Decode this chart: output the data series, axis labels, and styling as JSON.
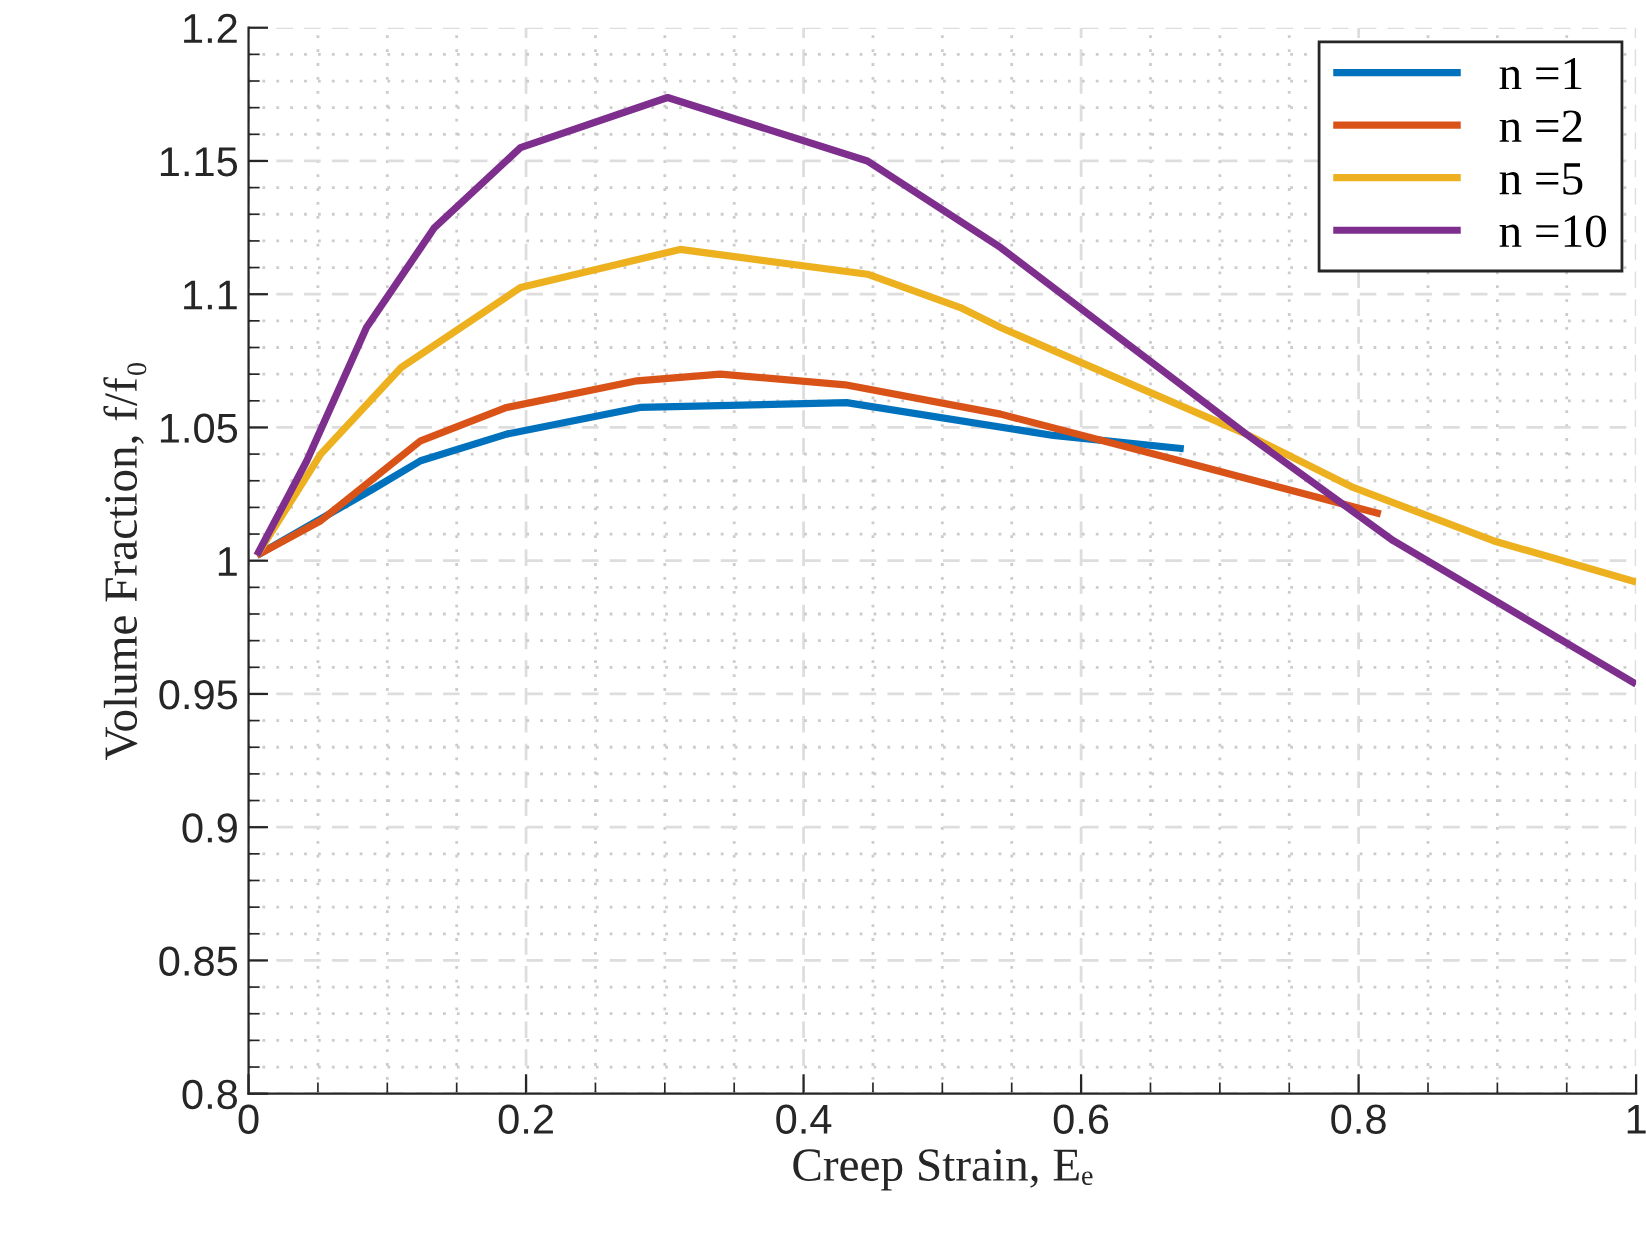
{
  "chart_data": {
    "type": "line",
    "xlabel": "Creep Strain, Eₑ",
    "ylabel": "Volume Fraction, f/f₀",
    "xlim": [
      0,
      1
    ],
    "ylim": [
      0.8,
      1.2
    ],
    "xticks": [
      0,
      0.2,
      0.4,
      0.6,
      0.8,
      1
    ],
    "yticks": [
      0.8,
      0.85,
      0.9,
      0.95,
      1,
      1.05,
      1.1,
      1.15,
      1.2
    ],
    "grid": true,
    "legend": "top right",
    "marker": "none",
    "line_style": "solid",
    "series": [
      {
        "name": "n =1",
        "color": "#0072bd",
        "x": [
          0.006,
          0.09,
          0.124,
          0.186,
          0.282,
          0.431,
          0.58,
          0.674
        ],
        "values": [
          1.002,
          1.027,
          1.0375,
          1.0475,
          1.0575,
          1.0593,
          1.047,
          1.042
        ]
      },
      {
        "name": "n =2",
        "color": "#d95319",
        "x": [
          0.006,
          0.052,
          0.124,
          0.186,
          0.28,
          0.34,
          0.43,
          0.542,
          0.671,
          0.816
        ],
        "values": [
          1.002,
          1.015,
          1.045,
          1.0575,
          1.0675,
          1.07,
          1.066,
          1.055,
          1.0375,
          1.0175
        ]
      },
      {
        "name": "n =5",
        "color": "#edb120",
        "x": [
          0.006,
          0.052,
          0.11,
          0.196,
          0.311,
          0.446,
          0.513,
          0.542,
          0.719,
          0.796,
          0.897,
          1.0
        ],
        "values": [
          1.002,
          1.04,
          1.0725,
          1.1025,
          1.1168,
          1.1075,
          1.095,
          1.0875,
          1.0475,
          1.0275,
          1.0075,
          0.992
        ]
      },
      {
        "name": "n =10",
        "color": "#7e2f8e",
        "x": [
          0.006,
          0.042,
          0.085,
          0.134,
          0.196,
          0.302,
          0.446,
          0.542,
          0.719,
          0.825,
          1.0
        ],
        "values": [
          1.002,
          1.0375,
          1.0875,
          1.125,
          1.155,
          1.1738,
          1.15,
          1.1175,
          1.0475,
          1.0075,
          0.9537
        ]
      }
    ]
  }
}
